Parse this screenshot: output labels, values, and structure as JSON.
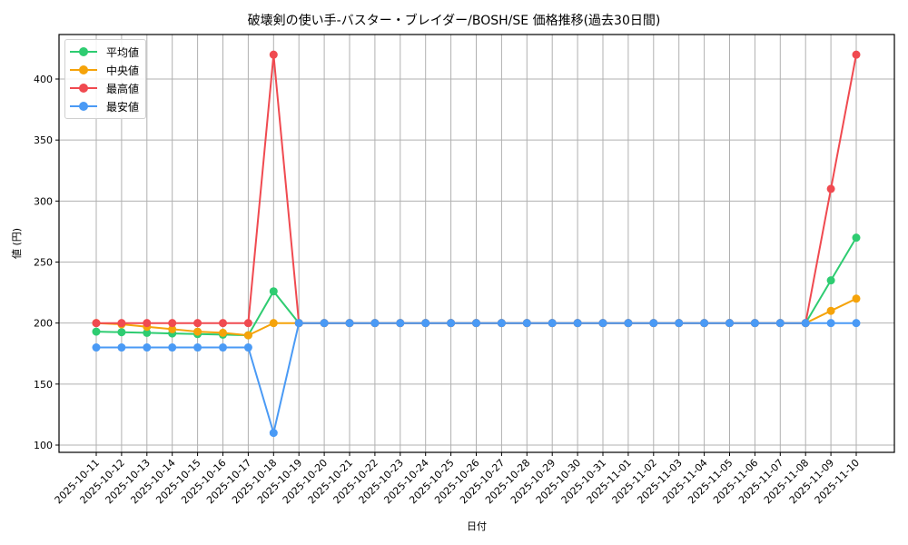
{
  "chart_data": {
    "type": "line",
    "title": "破壊剣の使い手-バスター・ブレイダー/BOSH/SE 価格推移(過去30日間)",
    "xlabel": "日付",
    "ylabel": "値 (円)",
    "ylim": [
      95,
      435
    ],
    "yticks": [
      100,
      150,
      200,
      250,
      300,
      350,
      400
    ],
    "grid": true,
    "legend_position": "upper left",
    "categories": [
      "2025-10-11",
      "2025-10-12",
      "2025-10-13",
      "2025-10-14",
      "2025-10-15",
      "2025-10-16",
      "2025-10-17",
      "2025-10-18",
      "2025-10-19",
      "2025-10-20",
      "2025-10-21",
      "2025-10-22",
      "2025-10-23",
      "2025-10-24",
      "2025-10-25",
      "2025-10-26",
      "2025-10-27",
      "2025-10-28",
      "2025-10-29",
      "2025-10-30",
      "2025-10-31",
      "2025-11-01",
      "2025-11-02",
      "2025-11-03",
      "2025-11-04",
      "2025-11-05",
      "2025-11-06",
      "2025-11-07",
      "2025-11-08",
      "2025-11-09",
      "2025-11-10"
    ],
    "series": [
      {
        "name": "平均値",
        "color": "#2ecc71",
        "values": [
          193,
          192.5,
          192,
          191.5,
          191,
          190.5,
          190,
          226,
          200,
          200,
          200,
          200,
          200,
          200,
          200,
          200,
          200,
          200,
          200,
          200,
          200,
          200,
          200,
          200,
          200,
          200,
          200,
          200,
          200,
          235,
          270
        ]
      },
      {
        "name": "中央値",
        "color": "#f5a30a",
        "values": [
          200,
          199,
          197,
          195,
          193,
          192,
          190,
          200,
          200,
          200,
          200,
          200,
          200,
          200,
          200,
          200,
          200,
          200,
          200,
          200,
          200,
          200,
          200,
          200,
          200,
          200,
          200,
          200,
          200,
          210,
          220
        ]
      },
      {
        "name": "最高値",
        "color": "#f04a50",
        "values": [
          200,
          200,
          200,
          200,
          200,
          200,
          200,
          420,
          200,
          200,
          200,
          200,
          200,
          200,
          200,
          200,
          200,
          200,
          200,
          200,
          200,
          200,
          200,
          200,
          200,
          200,
          200,
          200,
          200,
          310,
          420
        ]
      },
      {
        "name": "最安値",
        "color": "#4a9af5",
        "values": [
          180,
          180,
          180,
          180,
          180,
          180,
          180,
          110,
          200,
          200,
          200,
          200,
          200,
          200,
          200,
          200,
          200,
          200,
          200,
          200,
          200,
          200,
          200,
          200,
          200,
          200,
          200,
          200,
          200,
          200,
          200
        ]
      }
    ]
  }
}
